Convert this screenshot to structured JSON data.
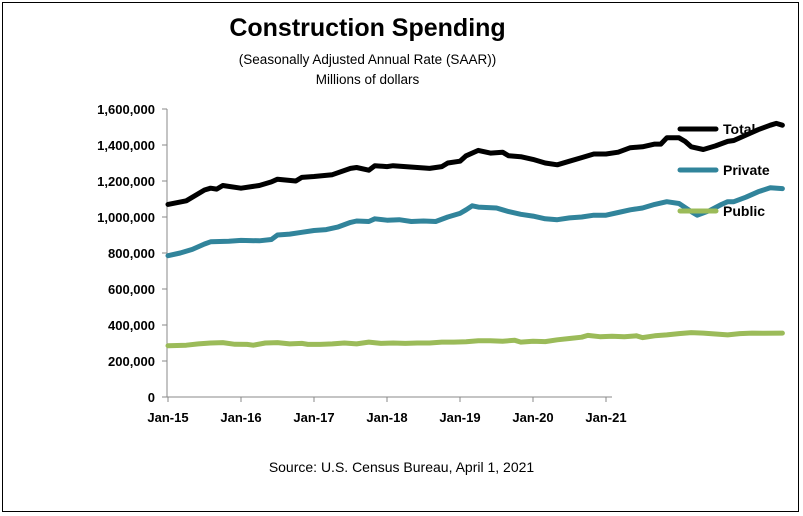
{
  "chart_data": {
    "type": "line",
    "title": "Construction Spending",
    "subtitle": "(Seasonally Adjusted Annual Rate (SAAR))",
    "ylabel": "Millions of dollars",
    "source": "Source: U.S. Census Bureau, April 1, 2021",
    "ylim": [
      0,
      1600000
    ],
    "yticks": [
      "0",
      "200,000",
      "400,000",
      "600,000",
      "800,000",
      "1,000,000",
      "1,200,000",
      "1,400,000",
      "1,600,000"
    ],
    "xticks": [
      "Jan-15",
      "Jan-16",
      "Jan-17",
      "Jan-18",
      "Jan-19",
      "Jan-20",
      "Jan-21"
    ],
    "legend_position": "right",
    "grid": false,
    "series": [
      {
        "name": "Total",
        "color": "#000000",
        "points": [
          [
            0,
            1070000
          ],
          [
            3,
            1090000
          ],
          [
            6,
            1150000
          ],
          [
            7,
            1160000
          ],
          [
            8,
            1155000
          ],
          [
            9,
            1175000
          ],
          [
            12,
            1160000
          ],
          [
            14,
            1170000
          ],
          [
            15,
            1175000
          ],
          [
            17,
            1195000
          ],
          [
            18,
            1210000
          ],
          [
            21,
            1200000
          ],
          [
            22,
            1220000
          ],
          [
            24,
            1225000
          ],
          [
            27,
            1235000
          ],
          [
            30,
            1270000
          ],
          [
            31,
            1275000
          ],
          [
            33,
            1260000
          ],
          [
            34,
            1285000
          ],
          [
            36,
            1280000
          ],
          [
            37,
            1285000
          ],
          [
            39,
            1280000
          ],
          [
            41,
            1275000
          ],
          [
            43,
            1270000
          ],
          [
            45,
            1280000
          ],
          [
            46,
            1300000
          ],
          [
            48,
            1310000
          ],
          [
            49,
            1340000
          ],
          [
            51,
            1370000
          ],
          [
            53,
            1355000
          ],
          [
            55,
            1360000
          ],
          [
            56,
            1340000
          ],
          [
            58,
            1335000
          ],
          [
            60,
            1320000
          ],
          [
            62,
            1300000
          ],
          [
            64,
            1290000
          ],
          [
            66,
            1310000
          ],
          [
            68,
            1330000
          ],
          [
            70,
            1350000
          ],
          [
            72,
            1350000
          ],
          [
            74,
            1360000
          ],
          [
            76,
            1385000
          ],
          [
            78,
            1390000
          ],
          [
            80,
            1405000
          ],
          [
            81,
            1405000
          ],
          [
            82,
            1440000
          ],
          [
            84,
            1440000
          ],
          [
            85,
            1420000
          ],
          [
            86,
            1390000
          ],
          [
            88,
            1375000
          ],
          [
            90,
            1395000
          ],
          [
            92,
            1420000
          ],
          [
            93,
            1425000
          ],
          [
            95,
            1455000
          ],
          [
            97,
            1485000
          ],
          [
            99,
            1510000
          ],
          [
            100,
            1520000
          ],
          [
            101,
            1510000
          ]
        ]
      },
      {
        "name": "Private",
        "color": "#31849b",
        "points": [
          [
            0,
            785000
          ],
          [
            2,
            800000
          ],
          [
            4,
            820000
          ],
          [
            6,
            850000
          ],
          [
            7,
            862000
          ],
          [
            10,
            865000
          ],
          [
            12,
            870000
          ],
          [
            15,
            868000
          ],
          [
            17,
            875000
          ],
          [
            18,
            900000
          ],
          [
            20,
            905000
          ],
          [
            22,
            915000
          ],
          [
            24,
            925000
          ],
          [
            26,
            930000
          ],
          [
            28,
            945000
          ],
          [
            30,
            970000
          ],
          [
            31,
            978000
          ],
          [
            33,
            975000
          ],
          [
            34,
            990000
          ],
          [
            36,
            982000
          ],
          [
            38,
            985000
          ],
          [
            40,
            975000
          ],
          [
            42,
            978000
          ],
          [
            44,
            975000
          ],
          [
            46,
            1000000
          ],
          [
            48,
            1020000
          ],
          [
            49,
            1040000
          ],
          [
            50,
            1062000
          ],
          [
            51,
            1055000
          ],
          [
            54,
            1050000
          ],
          [
            55,
            1040000
          ],
          [
            56,
            1030000
          ],
          [
            58,
            1015000
          ],
          [
            60,
            1005000
          ],
          [
            62,
            990000
          ],
          [
            64,
            985000
          ],
          [
            66,
            995000
          ],
          [
            68,
            1000000
          ],
          [
            70,
            1010000
          ],
          [
            72,
            1010000
          ],
          [
            74,
            1025000
          ],
          [
            76,
            1040000
          ],
          [
            78,
            1050000
          ],
          [
            80,
            1070000
          ],
          [
            82,
            1085000
          ],
          [
            84,
            1075000
          ],
          [
            86,
            1030000
          ],
          [
            87,
            1010000
          ],
          [
            89,
            1035000
          ],
          [
            91,
            1070000
          ],
          [
            92,
            1085000
          ],
          [
            93,
            1085000
          ],
          [
            95,
            1110000
          ],
          [
            97,
            1140000
          ],
          [
            99,
            1162000
          ],
          [
            101,
            1158000
          ]
        ]
      },
      {
        "name": "Public",
        "color": "#9bbb59",
        "points": [
          [
            0,
            285000
          ],
          [
            3,
            288000
          ],
          [
            5,
            295000
          ],
          [
            7,
            300000
          ],
          [
            9,
            302000
          ],
          [
            11,
            293000
          ],
          [
            13,
            292000
          ],
          [
            14,
            288000
          ],
          [
            16,
            300000
          ],
          [
            18,
            302000
          ],
          [
            20,
            295000
          ],
          [
            22,
            298000
          ],
          [
            23,
            292000
          ],
          [
            25,
            292000
          ],
          [
            27,
            295000
          ],
          [
            29,
            300000
          ],
          [
            31,
            295000
          ],
          [
            33,
            305000
          ],
          [
            35,
            298000
          ],
          [
            37,
            300000
          ],
          [
            39,
            298000
          ],
          [
            41,
            300000
          ],
          [
            43,
            300000
          ],
          [
            45,
            305000
          ],
          [
            47,
            305000
          ],
          [
            49,
            307000
          ],
          [
            51,
            312000
          ],
          [
            53,
            313000
          ],
          [
            55,
            310000
          ],
          [
            57,
            315000
          ],
          [
            58,
            305000
          ],
          [
            60,
            310000
          ],
          [
            62,
            308000
          ],
          [
            64,
            318000
          ],
          [
            66,
            325000
          ],
          [
            68,
            332000
          ],
          [
            69,
            342000
          ],
          [
            71,
            335000
          ],
          [
            73,
            338000
          ],
          [
            75,
            335000
          ],
          [
            77,
            340000
          ],
          [
            78,
            330000
          ],
          [
            80,
            340000
          ],
          [
            82,
            345000
          ],
          [
            84,
            352000
          ],
          [
            86,
            358000
          ],
          [
            88,
            355000
          ],
          [
            90,
            350000
          ],
          [
            92,
            345000
          ],
          [
            94,
            352000
          ],
          [
            96,
            355000
          ],
          [
            98,
            354000
          ],
          [
            101,
            355000
          ]
        ]
      }
    ]
  }
}
